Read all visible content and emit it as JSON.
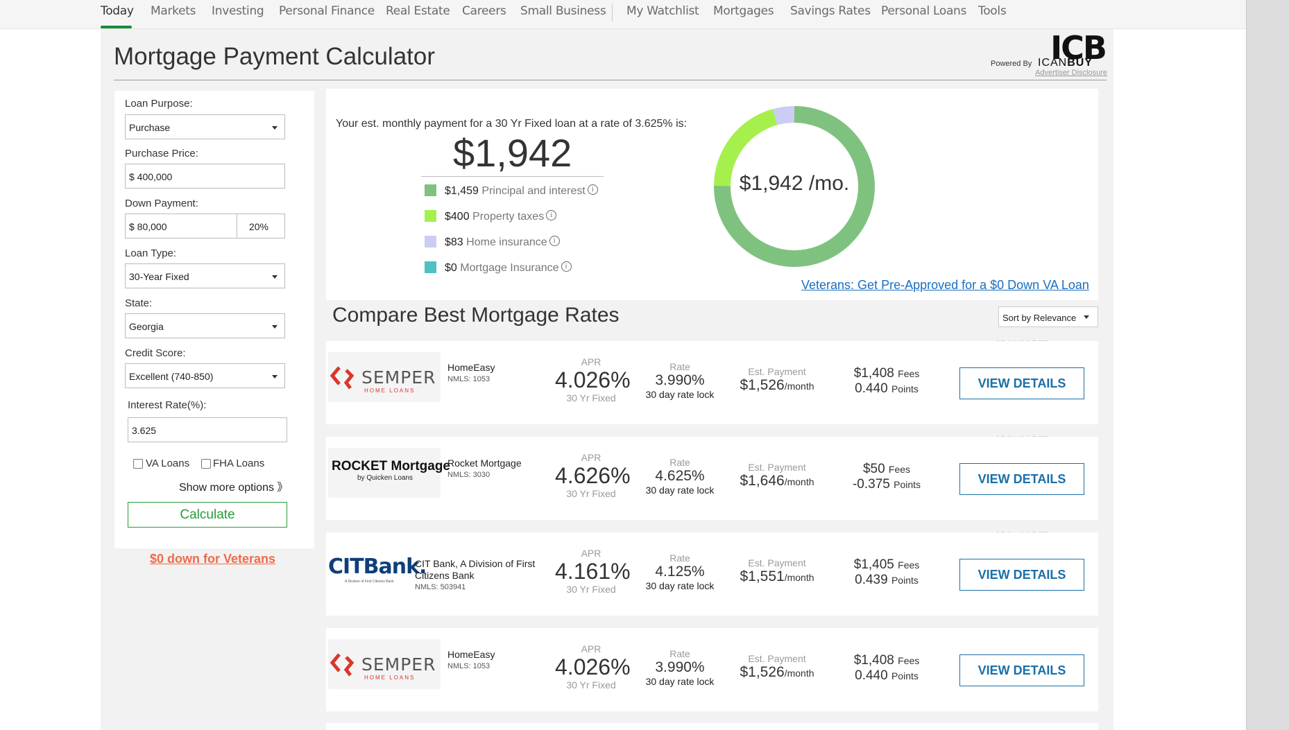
{
  "nav": {
    "items": [
      "Today",
      "Markets",
      "Investing",
      "Personal Finance",
      "Real Estate",
      "Careers",
      "Small Business",
      "My Watchlist",
      "Mortgages",
      "Savings Rates",
      "Personal Loans",
      "Tools"
    ]
  },
  "header": {
    "title": "Mortgage Payment Calculator",
    "brand_logo": "ICB",
    "powered_by": "Powered By",
    "brand_name_light": "ICAN",
    "brand_name_bold": "BUY",
    "disclosure": "Advertiser Disclosure"
  },
  "form": {
    "loan_purpose_label": "Loan Purpose:",
    "loan_purpose_value": "Purchase",
    "purchase_price_label": "Purchase Price:",
    "purchase_price_value": "$ 400,000",
    "down_payment_label": "Down Payment:",
    "down_payment_value": "$ 80,000",
    "down_payment_percent": "20%",
    "loan_type_label": "Loan Type:",
    "loan_type_value": "30-Year Fixed",
    "state_label": "State:",
    "state_value": "Georgia",
    "credit_score_label": "Credit Score:",
    "credit_score_value": "Excellent (740-850)",
    "interest_rate_label": "Interest Rate(%):",
    "interest_rate_value": "3.625",
    "va_loans_label": "VA Loans",
    "fha_loans_label": "FHA Loans",
    "show_more": "Show more options 》",
    "calculate": "Calculate",
    "veterans_link": "$0 down for Veterans"
  },
  "summary": {
    "intro": "Your est. monthly payment for a 30 Yr Fixed loan at a rate of 3.625% is:",
    "monthly_payment": "$1,942",
    "donut_label": "$1,942 /mo.",
    "breakdown": [
      {
        "amount": "$1,459",
        "label": "Principal and interest",
        "value": 1459,
        "color": "#7fc27f"
      },
      {
        "amount": "$400",
        "label": "Property taxes",
        "value": 400,
        "color": "#a6f04e"
      },
      {
        "amount": "$83",
        "label": "Home insurance",
        "value": 83,
        "color": "#cccdf5"
      },
      {
        "amount": "$0",
        "label": "Mortgage Insurance",
        "value": 0,
        "color": "#4ec2c2"
      }
    ],
    "info_glyph": "i",
    "va_promo": "Veterans: Get Pre-Approved for a $0 Down VA Loan"
  },
  "compare": {
    "title": "Compare Best Mortgage Rates",
    "sort_label": "Sort by Relevance",
    "sponsored": "SPONSORED",
    "apr_caption": "APR",
    "rate_caption": "Rate",
    "payment_caption": "Est. Payment",
    "fees_suffix": "Fees",
    "points_suffix": "Points",
    "month_suffix": "/month",
    "view_details": "VIEW DETAILS",
    "cards": [
      {
        "lender": "HomeEasy",
        "lender2": "",
        "nmls": "NMLS: 1053",
        "logo": "semper",
        "logo_text": "SEMPER",
        "logo_sub": "HOME LOANS",
        "apr": "4.026%",
        "apr_term": "30 Yr Fixed",
        "rate": "3.990%",
        "lock": "30 day rate lock",
        "payment": "$1,526",
        "fees": "$1,408",
        "points": "0.440",
        "sponsored": true
      },
      {
        "lender": "Rocket Mortgage",
        "lender2": "",
        "nmls": "NMLS: 3030",
        "logo": "rocket",
        "logo_text": "ROCKET Mortgage",
        "logo_sub": "by Quicken Loans",
        "apr": "4.626%",
        "apr_term": "30 Yr Fixed",
        "rate": "4.625%",
        "lock": "30 day rate lock",
        "payment": "$1,646",
        "fees": "$50",
        "points": "-0.375",
        "sponsored": true
      },
      {
        "lender": "CIT Bank, A Division of First",
        "lender2": "Citizens Bank",
        "nmls": "NMLS: 503941",
        "logo": "cit",
        "logo_text": "CITBank.",
        "logo_sub": "A Division of First Citizens Bank",
        "apr": "4.161%",
        "apr_term": "30 Yr Fixed",
        "rate": "4.125%",
        "lock": "30 day rate lock",
        "payment": "$1,551",
        "fees": "$1,405",
        "points": "0.439",
        "sponsored": true
      },
      {
        "lender": "HomeEasy",
        "lender2": "",
        "nmls": "NMLS: 1053",
        "logo": "semper",
        "logo_text": "SEMPER",
        "logo_sub": "HOME LOANS",
        "apr": "4.026%",
        "apr_term": "30 Yr Fixed",
        "rate": "3.990%",
        "lock": "30 day rate lock",
        "payment": "$1,526",
        "fees": "$1,408",
        "points": "0.440",
        "sponsored": false
      }
    ]
  },
  "colors": {
    "accent_green": "#1a8a3d",
    "button_blue": "#1a6fa8",
    "link_orange": "#f06a4a",
    "link_blue": "#1a6fc0"
  }
}
